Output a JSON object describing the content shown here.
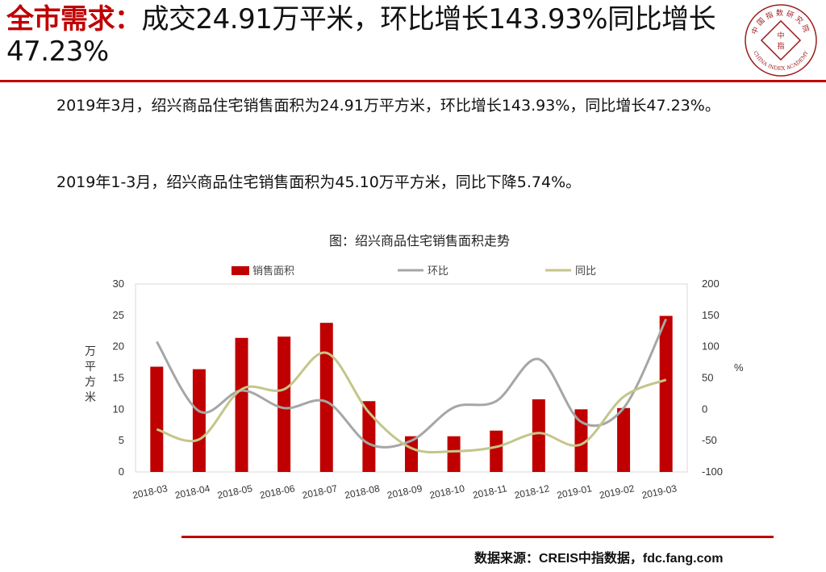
{
  "header": {
    "highlight": "全市需求：",
    "rest": "成交24.91万平米，环比增长143.93%同比增长47.23%"
  },
  "logo": {
    "top_text": "中国指数研究院",
    "bottom_text": "CHINA INDEX ACADEMY",
    "mark_chars": [
      "中",
      "指"
    ]
  },
  "paragraphs": [
    "2019年3月，绍兴商品住宅销售面积为24.91万平方米，环比增长143.93%，同比增长47.23%。",
    "2019年1-3月，绍兴商品住宅销售面积为45.10万平方米，同比下降5.74%。"
  ],
  "source": "数据来源：CREIS中指数据，fdc.fang.com",
  "colors": {
    "accent": "#c00000",
    "bar": "#c00000",
    "mom": "#a6a6a6",
    "yoy": "#c4c68a"
  },
  "chart_data": {
    "type": "bar",
    "title": "图：绍兴商品住宅销售面积走势",
    "categories": [
      "2018-03",
      "2018-04",
      "2018-05",
      "2018-06",
      "2018-07",
      "2018-08",
      "2018-09",
      "2018-10",
      "2018-11",
      "2018-12",
      "2019-01",
      "2019-02",
      "2019-03"
    ],
    "ylabel": "万平方米",
    "ylabel_right": "%",
    "ylim": [
      0,
      30
    ],
    "ylim_right": [
      -100,
      200
    ],
    "yticks": [
      0,
      5,
      10,
      15,
      20,
      25,
      30
    ],
    "yticks_right": [
      -100,
      -50,
      0,
      50,
      100,
      150,
      200
    ],
    "legend_position": "top",
    "series": [
      {
        "name": "销售面积",
        "type": "bar",
        "axis": "left",
        "values": [
          16.8,
          16.4,
          21.4,
          21.6,
          23.8,
          11.3,
          5.7,
          5.7,
          6.6,
          11.6,
          10.0,
          10.2,
          24.91
        ]
      },
      {
        "name": "环比",
        "type": "line",
        "axis": "right",
        "values": [
          108,
          -3,
          30,
          2,
          12,
          -55,
          -50,
          3,
          13,
          80,
          -20,
          2,
          143.93
        ]
      },
      {
        "name": "同比",
        "type": "line",
        "axis": "right",
        "values": [
          -32,
          -48,
          32,
          32,
          90,
          -5,
          -62,
          -67,
          -60,
          -38,
          -56,
          20,
          47.23
        ]
      }
    ]
  }
}
